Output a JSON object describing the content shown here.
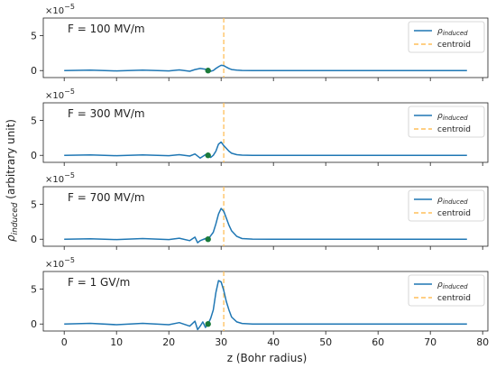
{
  "chart_data": [
    {
      "type": "line",
      "annotation": "F = 100 MV/m",
      "scale_label": "×10",
      "scale_exponent": "−5",
      "ylim": [
        -1,
        7.5
      ],
      "yticks": [
        "0",
        "5"
      ],
      "x": [
        0,
        5,
        10,
        15,
        20,
        22,
        24,
        25,
        26,
        27,
        27.5,
        28,
        28.5,
        29,
        29.5,
        30,
        30.5,
        31,
        31.5,
        32,
        33,
        34,
        36,
        40,
        77
      ],
      "series": [
        {
          "name": "ρinduced",
          "values": [
            0,
            0.05,
            -0.05,
            0.05,
            -0.05,
            0.1,
            -0.1,
            0.15,
            0.3,
            0.2,
            0.0,
            -0.1,
            0.0,
            0.3,
            0.55,
            0.75,
            0.7,
            0.5,
            0.3,
            0.15,
            0.05,
            0.02,
            0,
            0,
            0
          ]
        }
      ],
      "centroid": 30.5,
      "marker": {
        "x": 27.5,
        "y": 0.0
      }
    },
    {
      "type": "line",
      "annotation": "F = 300 MV/m",
      "scale_label": "×10",
      "scale_exponent": "−5",
      "ylim": [
        -1,
        7.5
      ],
      "yticks": [
        "0",
        "5"
      ],
      "x": [
        0,
        5,
        10,
        15,
        20,
        22,
        24,
        25,
        26,
        27,
        27.5,
        28,
        28.5,
        29,
        29.5,
        30,
        30.5,
        31,
        31.5,
        32,
        33,
        34,
        36,
        40,
        77
      ],
      "series": [
        {
          "name": "ρinduced",
          "values": [
            0,
            0.05,
            -0.05,
            0.05,
            -0.05,
            0.1,
            -0.1,
            0.2,
            -0.4,
            0.1,
            0.0,
            -0.3,
            0.0,
            0.6,
            1.6,
            1.9,
            1.4,
            1.0,
            0.6,
            0.3,
            0.1,
            0.03,
            0,
            0,
            0
          ]
        }
      ],
      "centroid": 30.5,
      "marker": {
        "x": 27.5,
        "y": 0.0
      }
    },
    {
      "type": "line",
      "annotation": "F = 700 MV/m",
      "scale_label": "×10",
      "scale_exponent": "−5",
      "ylim": [
        -1,
        7.5
      ],
      "yticks": [
        "0",
        "5"
      ],
      "x": [
        0,
        5,
        10,
        15,
        20,
        22,
        24,
        25,
        25.5,
        26,
        27,
        27.5,
        28,
        28.5,
        29,
        29.5,
        30,
        30.5,
        31,
        31.5,
        32,
        33,
        34,
        36,
        40,
        77
      ],
      "series": [
        {
          "name": "ρinduced",
          "values": [
            0,
            0.05,
            -0.05,
            0.1,
            -0.05,
            0.15,
            -0.2,
            0.3,
            -0.5,
            -0.2,
            0.1,
            0.0,
            0.5,
            1.0,
            2.2,
            3.6,
            4.4,
            4.0,
            3.0,
            2.0,
            1.2,
            0.4,
            0.1,
            0.02,
            0,
            0
          ]
        }
      ],
      "centroid": 30.5,
      "marker": {
        "x": 27.5,
        "y": 0.0
      }
    },
    {
      "type": "line",
      "annotation": "F = 1 GV/m",
      "scale_label": "×10",
      "scale_exponent": "−5",
      "ylim": [
        -1,
        7.5
      ],
      "yticks": [
        "0",
        "5"
      ],
      "x": [
        0,
        5,
        10,
        15,
        20,
        22,
        24,
        25,
        25.5,
        26,
        26.5,
        27,
        27.5,
        28,
        28.5,
        29,
        29.5,
        30,
        30.5,
        31,
        31.5,
        32,
        33,
        34,
        36,
        40,
        77
      ],
      "series": [
        {
          "name": "ρinduced",
          "values": [
            0,
            0.1,
            -0.1,
            0.1,
            -0.1,
            0.2,
            -0.3,
            0.4,
            -0.8,
            -0.3,
            0.3,
            -0.5,
            0.0,
            0.8,
            2.0,
            4.5,
            6.2,
            6.0,
            4.8,
            3.2,
            2.0,
            1.0,
            0.3,
            0.08,
            0.01,
            0,
            0
          ]
        }
      ],
      "centroid": 30.5,
      "marker": {
        "x": 27.5,
        "y": 0.0
      }
    }
  ],
  "shared": {
    "xlabel": "z (Bohr radius)",
    "ylabel_main": "ρ",
    "ylabel_sub": "induced",
    "ylabel_rest": " (arbitrary unit)",
    "xticks": [
      0,
      10,
      20,
      30,
      40,
      50,
      60,
      70,
      80
    ],
    "xlim": [
      -4,
      81
    ],
    "legend": {
      "line_main": "ρ",
      "line_sub": "induced",
      "centroid": "centroid",
      "placement": "top-right"
    },
    "colors": {
      "line": "#1f77b4",
      "centroid": "#ffbf5a",
      "marker": "#1a7a3a"
    }
  }
}
